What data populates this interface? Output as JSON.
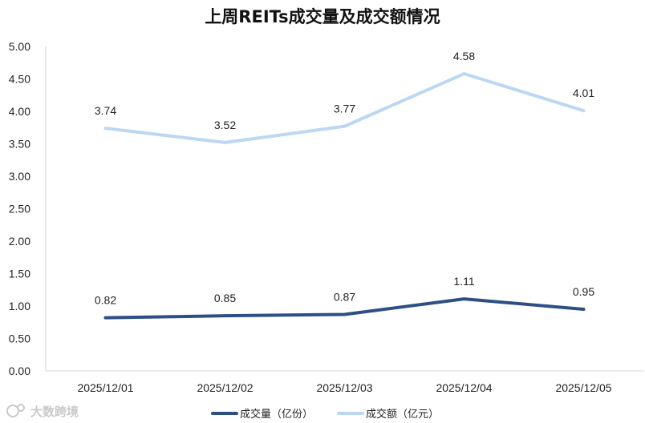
{
  "chart_data": {
    "type": "line",
    "title": "上周REITs成交量及成交额情况",
    "categories": [
      "2025/12/01",
      "2025/12/02",
      "2025/12/03",
      "2025/12/04",
      "2025/12/05"
    ],
    "series": [
      {
        "name": "成交量（亿份）",
        "values": [
          0.82,
          0.85,
          0.87,
          1.11,
          0.95
        ],
        "labels": [
          "0.82",
          "0.85",
          "0.87",
          "1.11",
          "0.95"
        ],
        "color": "#2e4f86"
      },
      {
        "name": "成交额（亿元）",
        "values": [
          3.74,
          3.52,
          3.77,
          4.58,
          4.01
        ],
        "labels": [
          "3.74",
          "3.52",
          "3.77",
          "4.58",
          "4.01"
        ],
        "color": "#bcd7f2"
      }
    ],
    "ylim": [
      0,
      5
    ],
    "yticks": [
      "0.00",
      "0.50",
      "1.00",
      "1.50",
      "2.00",
      "2.50",
      "3.00",
      "3.50",
      "4.00",
      "4.50",
      "5.00"
    ],
    "xlabel": "",
    "ylabel": "",
    "grid": false,
    "legend": "bottom"
  },
  "watermark": "大数跨境"
}
